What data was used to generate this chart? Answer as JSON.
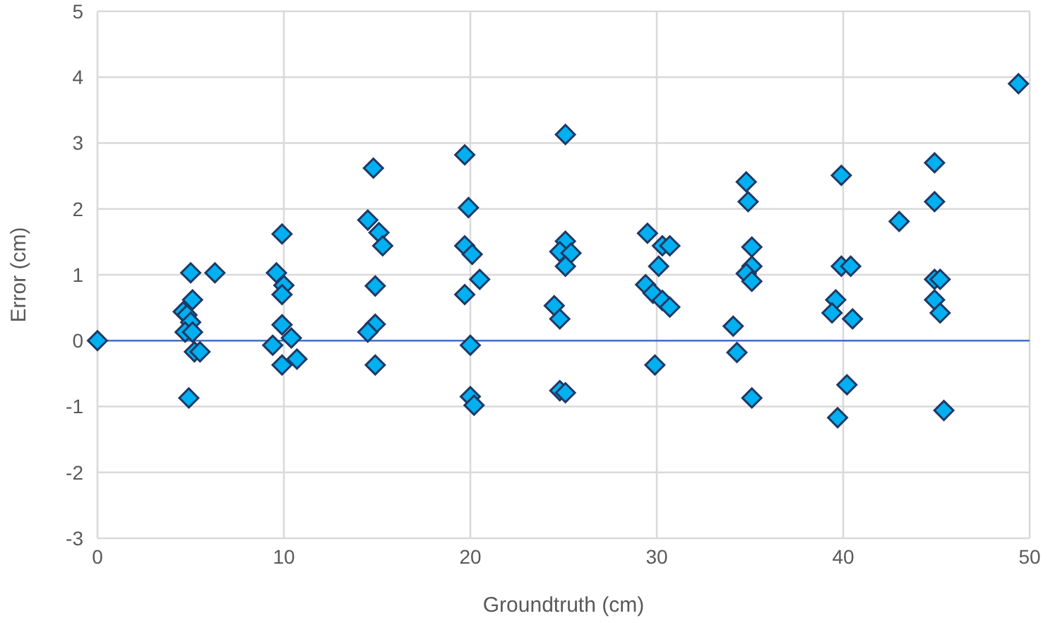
{
  "chart_data": {
    "type": "scatter",
    "xlabel": "Groundtruth (cm)",
    "ylabel": "Error (cm)",
    "xlim": [
      0,
      50
    ],
    "xticks": [
      0,
      10,
      20,
      30,
      40,
      50
    ],
    "ylim": [
      -3,
      5
    ],
    "yticks": [
      -3,
      -2,
      -1,
      0,
      1,
      2,
      3,
      4,
      5
    ],
    "grid": true,
    "marker": "diamond",
    "ref_lines": [
      {
        "axis": "y",
        "value": 0,
        "color": "#4472c4"
      }
    ],
    "series": [
      {
        "color": "#00b0f0",
        "x": [
          0,
          5.0,
          6.3,
          5.1,
          4.6,
          4.8,
          5.0,
          4.7,
          5.1,
          5.2,
          5.5,
          4.9,
          9.9,
          9.6,
          10.0,
          9.9,
          9.9,
          10.4,
          9.4,
          9.9,
          10.7,
          14.8,
          14.5,
          15.1,
          15.3,
          14.9,
          14.9,
          14.5,
          14.9,
          19.7,
          19.9,
          19.7,
          20.1,
          20.5,
          19.7,
          20.0,
          20.0,
          20.2,
          25.1,
          25.1,
          24.8,
          25.4,
          25.1,
          24.5,
          24.8,
          24.8,
          25.1,
          29.5,
          30.3,
          30.7,
          30.1,
          29.4,
          29.8,
          30.3,
          30.7,
          29.9,
          34.8,
          34.9,
          35.1,
          35.1,
          34.8,
          35.1,
          34.1,
          34.3,
          35.1,
          39.9,
          39.9,
          40.4,
          39.6,
          39.4,
          40.5,
          40.2,
          39.7,
          43.0,
          44.9,
          44.9,
          44.9,
          45.2,
          44.9,
          45.2,
          45.4,
          49.4
        ],
        "values": [
          0,
          1.03,
          1.03,
          0.62,
          0.44,
          0.39,
          0.28,
          0.13,
          0.13,
          -0.17,
          -0.17,
          -0.87,
          1.62,
          1.03,
          0.84,
          0.7,
          0.24,
          0.04,
          -0.07,
          -0.37,
          -0.28,
          2.62,
          1.83,
          1.64,
          1.44,
          0.83,
          0.25,
          0.13,
          -0.37,
          2.82,
          2.02,
          1.44,
          1.31,
          0.93,
          0.7,
          -0.07,
          -0.85,
          -0.98,
          3.13,
          1.51,
          1.35,
          1.33,
          1.13,
          0.53,
          0.33,
          -0.76,
          -0.79,
          1.63,
          1.44,
          1.44,
          1.13,
          0.85,
          0.72,
          0.61,
          0.51,
          -0.37,
          2.41,
          2.11,
          1.42,
          1.13,
          1.02,
          0.9,
          0.22,
          -0.18,
          -0.87,
          2.51,
          1.13,
          1.13,
          0.62,
          0.42,
          0.33,
          -0.67,
          -1.17,
          1.81,
          2.7,
          2.11,
          0.93,
          0.93,
          0.62,
          0.42,
          -1.06,
          3.9
        ]
      }
    ]
  }
}
